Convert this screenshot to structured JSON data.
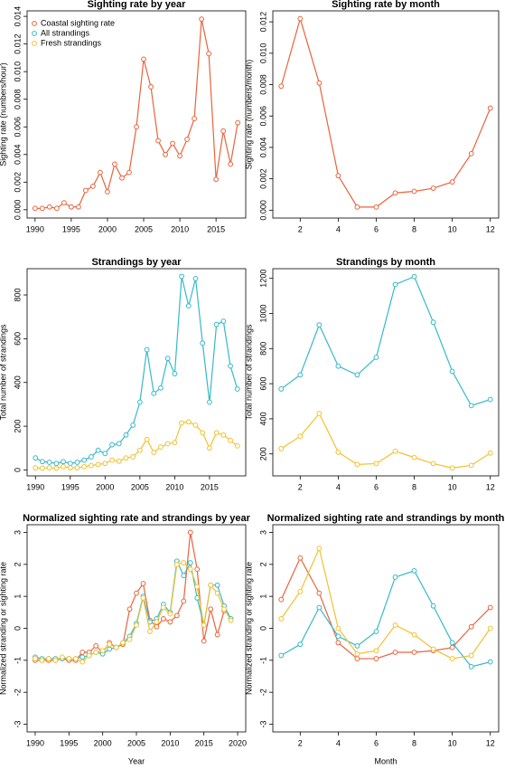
{
  "chart_data": [
    {
      "type": "line",
      "title": "Sighting rate by year",
      "y_label": "Sighting rate (numbers/hour)",
      "x": [
        1990,
        1991,
        1992,
        1993,
        1994,
        1995,
        1996,
        1997,
        1998,
        1999,
        2000,
        2001,
        2002,
        2003,
        2004,
        2005,
        2006,
        2007,
        2008,
        2009,
        2010,
        2011,
        2012,
        2013,
        2014,
        2015,
        2016,
        2017,
        2018
      ],
      "series": [
        {
          "name": "Coastal sighting rate",
          "color": "#e8643c",
          "values": [
            0.0001,
            0.0001,
            0.0002,
            0.0001,
            0.0005,
            0.0002,
            0.0002,
            0.0014,
            0.0017,
            0.0027,
            0.0013,
            0.0033,
            0.0023,
            0.0027,
            0.006,
            0.0109,
            0.0089,
            0.005,
            0.004,
            0.0048,
            0.0039,
            0.0051,
            0.0066,
            0.0138,
            0.0113,
            0.0022,
            0.0057,
            0.0033,
            0.0063
          ]
        }
      ],
      "legend": {
        "position": "topleft",
        "entries": [
          {
            "name": "Coastal sighting rate",
            "color": "#e8643c"
          },
          {
            "name": "All strandings",
            "color": "#35b9c9"
          },
          {
            "name": "Fresh strandings",
            "color": "#f2c12e"
          }
        ]
      },
      "xlim": [
        1988.9,
        2019.1
      ],
      "xticks": [
        1990,
        1995,
        2000,
        2005,
        2010,
        2015
      ],
      "ylim": [
        -0.0006,
        0.0144
      ],
      "yticks": [
        {
          "value": 0,
          "label": "0.000"
        },
        {
          "value": 0.002,
          "label": "0.002"
        },
        {
          "value": 0.004,
          "label": "0.004"
        },
        {
          "value": 0.006,
          "label": "0.006"
        },
        {
          "value": 0.008,
          "label": "0.008"
        },
        {
          "value": 0.01,
          "label": "0.010"
        },
        {
          "value": 0.012,
          "label": "0.012"
        },
        {
          "value": 0.014,
          "label": "0.014"
        }
      ]
    },
    {
      "type": "line",
      "title": "Sighting rate by month",
      "y_label": "Sighting rate (numbers/month)",
      "x": [
        1,
        2,
        3,
        4,
        5,
        6,
        7,
        8,
        9,
        10,
        11,
        12
      ],
      "series": [
        {
          "color": "#e8643c",
          "values": [
            0.0079,
            0.0122,
            0.0081,
            0.0022,
            0.0002,
            0.0002,
            0.0011,
            0.0012,
            0.0014,
            0.0018,
            0.0036,
            0.0065
          ]
        }
      ],
      "xlim": [
        0.56,
        12.44
      ],
      "xticks": [
        2,
        4,
        6,
        8,
        10,
        12
      ],
      "ylim": [
        -0.0005,
        0.0127
      ],
      "yticks": [
        {
          "value": 0,
          "label": "0.000"
        },
        {
          "value": 0.002,
          "label": "0.002"
        },
        {
          "value": 0.004,
          "label": "0.004"
        },
        {
          "value": 0.006,
          "label": "0.006"
        },
        {
          "value": 0.008,
          "label": "0.008"
        },
        {
          "value": 0.01,
          "label": "0.010"
        },
        {
          "value": 0.012,
          "label": "0.012"
        }
      ]
    },
    {
      "type": "line",
      "title": "Strandings by year",
      "y_label": "Total number of strandings",
      "x": [
        1990,
        1991,
        1992,
        1993,
        1994,
        1995,
        1996,
        1997,
        1998,
        1999,
        2000,
        2001,
        2002,
        2003,
        2004,
        2005,
        2006,
        2007,
        2008,
        2009,
        2010,
        2011,
        2012,
        2013,
        2014,
        2015,
        2016,
        2017,
        2018,
        2019
      ],
      "series": [
        {
          "color": "#35b9c9",
          "values": [
            55,
            38,
            35,
            30,
            38,
            30,
            35,
            45,
            60,
            90,
            75,
            115,
            120,
            160,
            205,
            310,
            550,
            350,
            375,
            510,
            440,
            885,
            750,
            875,
            580,
            310,
            665,
            680,
            475,
            370
          ]
        },
        {
          "color": "#f2c12e",
          "values": [
            10,
            8,
            10,
            8,
            15,
            10,
            10,
            15,
            20,
            25,
            30,
            45,
            40,
            55,
            60,
            90,
            140,
            80,
            105,
            120,
            125,
            215,
            220,
            205,
            170,
            100,
            170,
            160,
            135,
            110
          ]
        }
      ],
      "xlim": [
        1988.8,
        2020.2
      ],
      "xticks": [
        1990,
        1995,
        2000,
        2005,
        2010,
        2015
      ],
      "ylim": [
        -27,
        920
      ],
      "yticks": [
        0,
        200,
        400,
        600,
        800
      ]
    },
    {
      "type": "line",
      "title": "Strandings by month",
      "y_label": "Total number of strandings",
      "x": [
        1,
        2,
        3,
        4,
        5,
        6,
        7,
        8,
        9,
        10,
        11,
        12
      ],
      "series": [
        {
          "color": "#35b9c9",
          "values": [
            570,
            650,
            935,
            700,
            650,
            750,
            1165,
            1210,
            950,
            670,
            475,
            510
          ]
        },
        {
          "color": "#f2c12e",
          "values": [
            230,
            300,
            430,
            210,
            140,
            145,
            215,
            180,
            145,
            120,
            135,
            205
          ]
        }
      ],
      "xlim": [
        0.56,
        12.44
      ],
      "xticks": [
        2,
        4,
        6,
        8,
        10,
        12
      ],
      "ylim": [
        75,
        1255
      ],
      "yticks": [
        200,
        400,
        600,
        800,
        1000,
        1200
      ]
    },
    {
      "type": "line",
      "title": "Normalized sighting rate and strandings by year",
      "y_label": "Normalized stranding or sighting rate",
      "x_label": "Year",
      "x": [
        1990,
        1991,
        1992,
        1993,
        1994,
        1995,
        1996,
        1997,
        1998,
        1999,
        2000,
        2001,
        2002,
        2003,
        2004,
        2005,
        2006,
        2007,
        2008,
        2009,
        2010,
        2011,
        2012,
        2013,
        2014,
        2015,
        2016,
        2017,
        2018,
        2019
      ],
      "series": [
        {
          "color": "#e8643c",
          "values": [
            -1.0,
            -1.0,
            -1.0,
            -1.0,
            -0.95,
            -1.0,
            -1.0,
            -0.75,
            -0.75,
            -0.55,
            -0.75,
            -0.45,
            -0.6,
            -0.5,
            0.6,
            1.1,
            1.4,
            0.25,
            0.05,
            0.3,
            0.2,
            0.4,
            0.85,
            3.0,
            1.85,
            -0.4,
            0.6,
            -0.2,
            0.55,
            null
          ]
        },
        {
          "color": "#35b9c9",
          "values": [
            -0.9,
            -0.95,
            -0.95,
            -0.95,
            -0.95,
            -0.95,
            -0.95,
            -0.9,
            -0.85,
            -0.75,
            -0.8,
            -0.65,
            -0.6,
            -0.45,
            -0.25,
            0.15,
            1.0,
            0.2,
            0.3,
            0.75,
            0.5,
            2.1,
            1.65,
            2.05,
            0.95,
            0.1,
            1.35,
            1.35,
            0.7,
            0.3
          ]
        },
        {
          "color": "#f2c12e",
          "values": [
            -0.95,
            -1.0,
            -0.95,
            -1.0,
            -0.9,
            -0.95,
            -0.95,
            -1.05,
            -0.85,
            -0.75,
            -0.7,
            -0.5,
            -0.6,
            -0.45,
            -0.35,
            0.1,
            0.95,
            -0.1,
            0.2,
            0.65,
            0.45,
            2.0,
            2.05,
            1.85,
            1.3,
            0.1,
            1.35,
            1.1,
            0.6,
            0.25
          ]
        }
      ],
      "xlim": [
        1988.8,
        2021.2
      ],
      "xticks": [
        1990,
        1995,
        2000,
        2005,
        2010,
        2015,
        2020
      ],
      "ylim": [
        -3.24,
        3.24
      ],
      "yticks": [
        -3,
        -2,
        -1,
        0,
        1,
        2,
        3
      ]
    },
    {
      "type": "line",
      "title": "Normalized sighting rate and strandings by month",
      "y_label": "Normalized stranding or sighting rate",
      "x_label": "Month",
      "x": [
        1,
        2,
        3,
        4,
        5,
        6,
        7,
        8,
        9,
        10,
        11,
        12
      ],
      "series": [
        {
          "color": "#e8643c",
          "values": [
            0.9,
            2.2,
            1.1,
            -0.45,
            -0.95,
            -0.95,
            -0.75,
            -0.75,
            -0.7,
            -0.6,
            0.05,
            0.65
          ]
        },
        {
          "color": "#35b9c9",
          "values": [
            -0.85,
            -0.5,
            0.65,
            -0.25,
            -0.55,
            -0.1,
            1.6,
            1.8,
            0.7,
            -0.45,
            -1.2,
            -1.05
          ]
        },
        {
          "color": "#f2c12e",
          "values": [
            0.3,
            1.15,
            2.5,
            0.0,
            -0.8,
            -0.7,
            0.1,
            -0.2,
            -0.65,
            -0.95,
            -0.85,
            0.0
          ]
        }
      ],
      "xlim": [
        0.56,
        12.44
      ],
      "xticks": [
        2,
        4,
        6,
        8,
        10,
        12
      ],
      "ylim": [
        -3.24,
        3.24
      ],
      "yticks": [
        -3,
        -2,
        -1,
        0,
        1,
        2,
        3
      ]
    }
  ]
}
